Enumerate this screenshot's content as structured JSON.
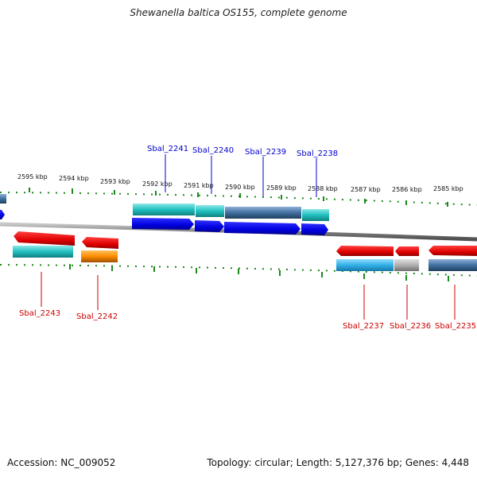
{
  "title": "Shewanella baltica OS155, complete genome",
  "footer": {
    "accession": "Accession: NC_009052",
    "summary": "Topology: circular; Length: 5,127,376 bp; Genes: 4,448"
  },
  "scale_labels": [
    "2595 kbp",
    "2594 kbp",
    "2593 kbp",
    "2592 kbp",
    "2591 kbp",
    "2590 kbp",
    "2589 kbp",
    "2588 kbp",
    "2587 kbp",
    "2586 kbp",
    "2585 kbp"
  ],
  "gene_labels_top": [
    "Sbal_2241",
    "Sbal_2240",
    "Sbal_2239",
    "Sbal_2238"
  ],
  "gene_labels_bottom": [
    "Sbal_2243",
    "Sbal_2242",
    "Sbal_2237",
    "Sbal_2236",
    "Sbal_2235"
  ],
  "colors": {
    "title": "#222222",
    "backbone": "#808080",
    "tick": "#1a8a1a",
    "forward_gene": "#0000e0",
    "reverse_gene": "#e00000",
    "cds_cyan": "#20c0c0",
    "cds_light_blue": "#30b0e8",
    "cds_orange": "#ff8c00",
    "cds_grey": "#b0b0b0",
    "cds_steel": "#4070a0",
    "label_blue": "#0000cc",
    "label_red": "#cc0000"
  }
}
